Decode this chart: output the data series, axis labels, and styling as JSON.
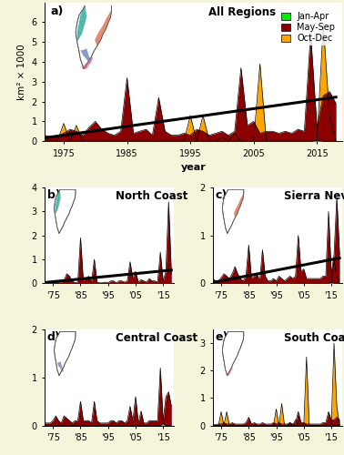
{
  "years": [
    1972,
    1973,
    1974,
    1975,
    1976,
    1977,
    1978,
    1979,
    1980,
    1981,
    1982,
    1983,
    1984,
    1985,
    1986,
    1987,
    1988,
    1989,
    1990,
    1991,
    1992,
    1993,
    1994,
    1995,
    1996,
    1997,
    1998,
    1999,
    2000,
    2001,
    2002,
    2003,
    2004,
    2005,
    2006,
    2007,
    2008,
    2009,
    2010,
    2011,
    2012,
    2013,
    2014,
    2015,
    2016,
    2017,
    2018
  ],
  "all_may_sep": [
    0.3,
    0.2,
    0.25,
    0.4,
    0.6,
    0.5,
    0.3,
    0.7,
    1.0,
    0.6,
    0.4,
    0.3,
    0.5,
    3.2,
    0.4,
    0.5,
    0.6,
    0.3,
    2.2,
    0.5,
    0.3,
    0.3,
    0.4,
    0.3,
    0.6,
    0.5,
    0.3,
    0.4,
    0.5,
    0.3,
    0.5,
    3.7,
    0.8,
    1.0,
    0.4,
    0.5,
    0.5,
    0.4,
    0.5,
    0.4,
    0.6,
    0.5,
    5.4,
    0.7,
    2.3,
    2.5,
    1.9
  ],
  "all_jan_apr": [
    0.0,
    0.0,
    0.0,
    0.0,
    0.0,
    0.0,
    0.0,
    0.0,
    0.0,
    0.0,
    0.0,
    0.0,
    0.0,
    0.0,
    0.0,
    0.0,
    0.0,
    0.0,
    0.0,
    0.0,
    0.0,
    0.0,
    0.0,
    0.0,
    0.0,
    0.0,
    0.0,
    0.0,
    0.0,
    0.0,
    0.0,
    0.0,
    0.0,
    0.0,
    0.0,
    0.0,
    0.0,
    0.0,
    0.0,
    0.0,
    0.0,
    0.0,
    0.0,
    0.05,
    0.0,
    0.0,
    0.0
  ],
  "all_oct_dec": [
    0.0,
    0.0,
    0.0,
    0.9,
    0.0,
    0.8,
    0.0,
    0.0,
    0.0,
    0.0,
    0.0,
    0.0,
    0.0,
    0.0,
    0.0,
    0.0,
    0.0,
    0.0,
    0.0,
    0.0,
    0.0,
    0.0,
    0.0,
    1.3,
    0.0,
    1.3,
    0.0,
    0.0,
    0.2,
    0.0,
    0.4,
    0.0,
    0.0,
    0.0,
    3.9,
    0.0,
    0.0,
    0.0,
    0.0,
    0.0,
    0.0,
    0.0,
    0.0,
    0.0,
    5.9,
    1.2,
    0.0
  ],
  "nc_may_sep": [
    0.05,
    0.02,
    0.05,
    0.08,
    0.1,
    0.05,
    0.05,
    0.12,
    0.4,
    0.3,
    0.1,
    0.02,
    0.05,
    1.9,
    0.12,
    0.2,
    0.3,
    0.05,
    1.0,
    0.05,
    0.02,
    0.02,
    0.05,
    0.02,
    0.1,
    0.1,
    0.02,
    0.1,
    0.1,
    0.05,
    0.1,
    0.9,
    0.2,
    0.5,
    0.05,
    0.15,
    0.1,
    0.05,
    0.2,
    0.1,
    0.1,
    0.05,
    1.3,
    0.1,
    0.5,
    3.4,
    0.4
  ],
  "nc_jan_apr": [
    0.0,
    0.0,
    0.0,
    0.0,
    0.0,
    0.0,
    0.0,
    0.0,
    0.0,
    0.0,
    0.0,
    0.0,
    0.0,
    0.0,
    0.0,
    0.0,
    0.0,
    0.0,
    0.0,
    0.0,
    0.0,
    0.0,
    0.0,
    0.0,
    0.0,
    0.0,
    0.0,
    0.0,
    0.0,
    0.0,
    0.0,
    0.0,
    0.0,
    0.0,
    0.0,
    0.0,
    0.0,
    0.0,
    0.0,
    0.0,
    0.0,
    0.0,
    0.0,
    0.0,
    0.0,
    0.0,
    0.0
  ],
  "nc_oct_dec": [
    0.0,
    0.0,
    0.0,
    0.0,
    0.0,
    0.0,
    0.0,
    0.0,
    0.0,
    0.0,
    0.0,
    0.0,
    0.0,
    0.0,
    0.0,
    0.0,
    0.0,
    0.0,
    0.0,
    0.0,
    0.0,
    0.0,
    0.0,
    0.0,
    0.0,
    0.0,
    0.0,
    0.0,
    0.0,
    0.0,
    0.0,
    0.0,
    0.0,
    0.0,
    0.0,
    0.0,
    0.0,
    0.0,
    0.0,
    0.0,
    0.0,
    0.0,
    0.0,
    0.0,
    0.0,
    0.0,
    0.0
  ],
  "sn_may_sep": [
    0.1,
    0.05,
    0.05,
    0.12,
    0.2,
    0.15,
    0.1,
    0.2,
    0.35,
    0.2,
    0.1,
    0.05,
    0.15,
    0.8,
    0.1,
    0.15,
    0.2,
    0.05,
    0.7,
    0.15,
    0.05,
    0.05,
    0.1,
    0.05,
    0.15,
    0.1,
    0.05,
    0.1,
    0.15,
    0.1,
    0.15,
    1.0,
    0.25,
    0.3,
    0.1,
    0.1,
    0.1,
    0.1,
    0.1,
    0.1,
    0.15,
    0.15,
    1.5,
    0.2,
    0.6,
    1.8,
    0.6
  ],
  "sn_jan_apr": [
    0.0,
    0.0,
    0.0,
    0.0,
    0.0,
    0.0,
    0.0,
    0.0,
    0.0,
    0.0,
    0.0,
    0.0,
    0.0,
    0.0,
    0.0,
    0.0,
    0.0,
    0.0,
    0.0,
    0.0,
    0.0,
    0.0,
    0.0,
    0.0,
    0.0,
    0.0,
    0.0,
    0.0,
    0.0,
    0.0,
    0.0,
    0.0,
    0.0,
    0.0,
    0.0,
    0.0,
    0.0,
    0.0,
    0.0,
    0.0,
    0.0,
    0.0,
    0.0,
    0.02,
    0.0,
    0.0,
    0.0
  ],
  "sn_oct_dec": [
    0.0,
    0.0,
    0.0,
    0.0,
    0.0,
    0.0,
    0.0,
    0.0,
    0.0,
    0.0,
    0.0,
    0.0,
    0.0,
    0.0,
    0.0,
    0.0,
    0.0,
    0.0,
    0.0,
    0.0,
    0.0,
    0.0,
    0.0,
    0.0,
    0.0,
    0.0,
    0.0,
    0.0,
    0.0,
    0.0,
    0.0,
    0.0,
    0.0,
    0.0,
    0.0,
    0.0,
    0.0,
    0.0,
    0.0,
    0.0,
    0.0,
    0.0,
    0.0,
    0.0,
    0.5,
    0.15,
    0.0
  ],
  "cc_may_sep": [
    0.05,
    0.05,
    0.05,
    0.1,
    0.2,
    0.1,
    0.05,
    0.2,
    0.15,
    0.1,
    0.05,
    0.1,
    0.1,
    0.5,
    0.1,
    0.1,
    0.1,
    0.05,
    0.5,
    0.1,
    0.05,
    0.05,
    0.05,
    0.05,
    0.1,
    0.1,
    0.05,
    0.1,
    0.1,
    0.05,
    0.1,
    0.4,
    0.1,
    0.6,
    0.05,
    0.3,
    0.05,
    0.05,
    0.1,
    0.1,
    0.1,
    0.1,
    1.2,
    0.1,
    0.6,
    0.7,
    0.4
  ],
  "cc_jan_apr": [
    0.0,
    0.0,
    0.0,
    0.0,
    0.0,
    0.0,
    0.0,
    0.0,
    0.0,
    0.0,
    0.0,
    0.0,
    0.0,
    0.0,
    0.0,
    0.0,
    0.0,
    0.0,
    0.0,
    0.0,
    0.0,
    0.0,
    0.0,
    0.0,
    0.0,
    0.0,
    0.0,
    0.0,
    0.0,
    0.0,
    0.0,
    0.0,
    0.0,
    0.0,
    0.0,
    0.0,
    0.0,
    0.0,
    0.0,
    0.0,
    0.0,
    0.0,
    0.0,
    0.04,
    0.0,
    0.0,
    0.0
  ],
  "cc_oct_dec": [
    0.0,
    0.0,
    0.0,
    0.0,
    0.0,
    0.0,
    0.0,
    0.0,
    0.0,
    0.0,
    0.0,
    0.0,
    0.0,
    0.0,
    0.0,
    0.0,
    0.0,
    0.0,
    0.0,
    0.0,
    0.0,
    0.0,
    0.0,
    0.0,
    0.0,
    0.0,
    0.0,
    0.0,
    0.0,
    0.0,
    0.0,
    0.0,
    0.0,
    0.0,
    0.0,
    0.0,
    0.0,
    0.0,
    0.0,
    0.0,
    0.0,
    0.0,
    0.0,
    0.0,
    0.0,
    0.0,
    0.0
  ],
  "sc_may_sep": [
    0.05,
    0.02,
    0.05,
    0.05,
    0.1,
    0.05,
    0.05,
    0.1,
    0.05,
    0.05,
    0.05,
    0.05,
    0.1,
    0.3,
    0.05,
    0.1,
    0.05,
    0.05,
    0.1,
    0.05,
    0.05,
    0.05,
    0.1,
    0.05,
    0.1,
    0.05,
    0.05,
    0.05,
    0.1,
    0.05,
    0.1,
    0.5,
    0.1,
    0.1,
    0.05,
    0.05,
    0.05,
    0.05,
    0.05,
    0.05,
    0.1,
    0.1,
    0.5,
    0.2,
    0.2,
    0.3,
    0.2
  ],
  "sc_jan_apr": [
    0.0,
    0.0,
    0.0,
    0.0,
    0.0,
    0.0,
    0.0,
    0.0,
    0.0,
    0.0,
    0.0,
    0.0,
    0.0,
    0.0,
    0.0,
    0.0,
    0.0,
    0.0,
    0.0,
    0.0,
    0.0,
    0.0,
    0.0,
    0.0,
    0.0,
    0.0,
    0.0,
    0.0,
    0.0,
    0.0,
    0.0,
    0.0,
    0.0,
    0.0,
    0.0,
    0.0,
    0.0,
    0.0,
    0.0,
    0.0,
    0.0,
    0.0,
    0.0,
    0.02,
    0.0,
    0.0,
    0.0
  ],
  "sc_oct_dec": [
    0.0,
    0.0,
    0.0,
    0.5,
    0.0,
    0.5,
    0.0,
    0.0,
    0.0,
    0.0,
    0.0,
    0.0,
    0.0,
    0.0,
    0.0,
    0.0,
    0.0,
    0.0,
    0.0,
    0.0,
    0.0,
    0.0,
    0.0,
    0.6,
    0.0,
    0.8,
    0.0,
    0.0,
    0.1,
    0.0,
    0.2,
    0.0,
    0.0,
    0.0,
    2.5,
    0.0,
    0.0,
    0.0,
    0.0,
    0.0,
    0.0,
    0.0,
    0.0,
    0.0,
    3.0,
    0.7,
    0.0
  ],
  "color_may_sep": "#8B0000",
  "color_jan_apr": "#00EE00",
  "color_oct_dec": "#FFA500",
  "tick_labels_short": [
    "'75",
    "'85",
    "'95",
    "'05",
    "'15"
  ],
  "tick_positions": [
    1975,
    1985,
    1995,
    2005,
    2015
  ],
  "tick_labels_long": [
    "1975",
    "1985",
    "1995",
    "2005",
    "2015"
  ]
}
